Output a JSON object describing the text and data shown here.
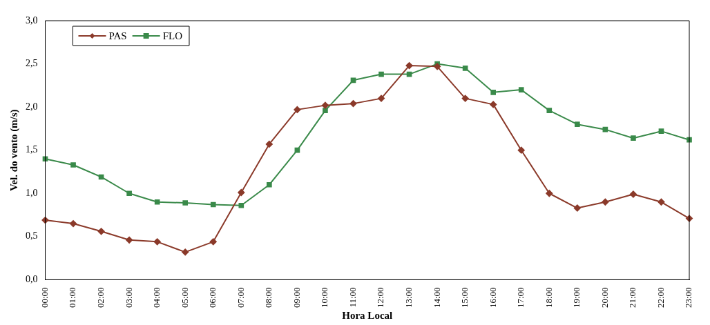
{
  "chart_data": {
    "type": "line",
    "xlabel": "Hora Local",
    "ylabel": "Vel. do vento (m/s)",
    "categories": [
      "00:00",
      "01:00",
      "02:00",
      "03:00",
      "04:00",
      "05:00",
      "06:00",
      "07:00",
      "08:00",
      "09:00",
      "10:00",
      "11:00",
      "12:00",
      "13:00",
      "14:00",
      "15:00",
      "16:00",
      "17:00",
      "18:00",
      "19:00",
      "20:00",
      "21:00",
      "22:00",
      "23:00"
    ],
    "series": [
      {
        "name": "PAS",
        "color": "#8b3a2a",
        "marker": "diamond",
        "values": [
          0.69,
          0.65,
          0.56,
          0.46,
          0.44,
          0.32,
          0.44,
          1.01,
          1.57,
          1.97,
          2.02,
          2.04,
          2.1,
          2.48,
          2.47,
          2.1,
          2.03,
          1.5,
          1.0,
          0.83,
          0.9,
          0.99,
          0.9,
          0.71
        ]
      },
      {
        "name": "FLO",
        "color": "#3a8a4a",
        "marker": "square",
        "values": [
          1.4,
          1.33,
          1.19,
          1.0,
          0.9,
          0.89,
          0.87,
          0.86,
          1.1,
          1.5,
          1.96,
          2.31,
          2.38,
          2.38,
          2.5,
          2.45,
          2.17,
          2.2,
          1.96,
          1.8,
          1.74,
          1.64,
          1.72,
          1.62
        ]
      }
    ],
    "ylim": [
      0,
      3
    ],
    "yticks": [
      {
        "value": 0,
        "label": "0,0"
      },
      {
        "value": 0.5,
        "label": "0,5"
      },
      {
        "value": 1,
        "label": "1,0"
      },
      {
        "value": 1.5,
        "label": "1,5"
      },
      {
        "value": 2,
        "label": "2,0"
      },
      {
        "value": 2.5,
        "label": "2,5"
      },
      {
        "value": 3,
        "label": "3,0"
      }
    ],
    "grid": false,
    "legend": "top left",
    "line_style": "solid"
  }
}
